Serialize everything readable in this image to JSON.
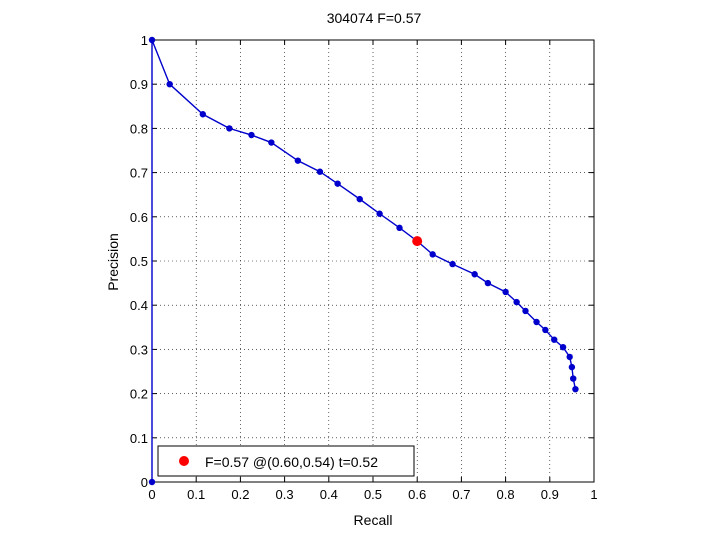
{
  "chart_data": {
    "type": "line",
    "title": "304074 F=0.57",
    "xlabel": "Recall",
    "ylabel": "Precision",
    "xlim": [
      0,
      1
    ],
    "ylim": [
      0,
      1
    ],
    "xticks": [
      "0",
      "0.1",
      "0.2",
      "0.3",
      "0.4",
      "0.5",
      "0.6",
      "0.7",
      "0.8",
      "0.9",
      "1"
    ],
    "yticks": [
      "0",
      "0.1",
      "0.2",
      "0.3",
      "0.4",
      "0.5",
      "0.6",
      "0.7",
      "0.8",
      "0.9",
      "1"
    ],
    "grid": true,
    "grid_style": "dotted",
    "legend_position": "bottom-left",
    "colors": {
      "series": "#0000cc",
      "best": "#ff0000"
    },
    "series": [
      {
        "name": "",
        "x": [
          0.0,
          0.0,
          0.04,
          0.115,
          0.175,
          0.225,
          0.27,
          0.33,
          0.38,
          0.42,
          0.47,
          0.515,
          0.56,
          0.6,
          0.635,
          0.68,
          0.73,
          0.76,
          0.8,
          0.825,
          0.845,
          0.87,
          0.89,
          0.91,
          0.93,
          0.945,
          0.95,
          0.953,
          0.958
        ],
        "y": [
          0.0,
          1.0,
          0.9,
          0.832,
          0.8,
          0.785,
          0.768,
          0.727,
          0.702,
          0.675,
          0.64,
          0.607,
          0.575,
          0.545,
          0.515,
          0.493,
          0.47,
          0.45,
          0.43,
          0.407,
          0.387,
          0.362,
          0.344,
          0.322,
          0.305,
          0.283,
          0.26,
          0.234,
          0.21
        ]
      }
    ],
    "best_point": {
      "recall": 0.6,
      "precision": 0.545
    },
    "legend_label": "F=0.57 @(0.60,0.54) t=0.52"
  }
}
